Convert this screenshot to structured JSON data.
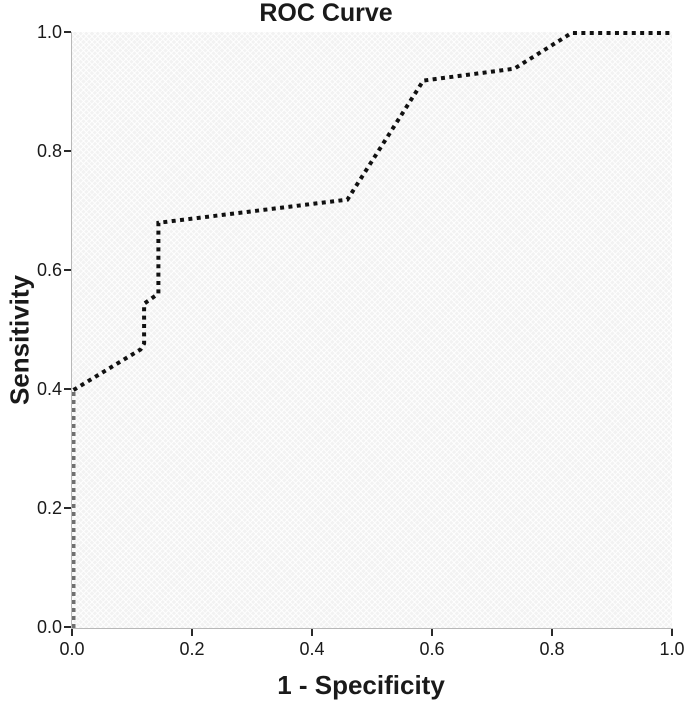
{
  "title": "ROC Curve",
  "axes": {
    "x_label": "1 - Specificity",
    "y_label": "Sensitivity",
    "x_tick_labels": [
      "0.0",
      "0.2",
      "0.4",
      "0.6",
      "0.8",
      "1.0"
    ],
    "y_tick_labels": [
      "0.0",
      "0.2",
      "0.4",
      "0.6",
      "0.8",
      "1.0"
    ]
  },
  "colors": {
    "curve": "#111111",
    "curve_on_axis_segment": "#6f6f6f",
    "axis_line": "#b8b8b8",
    "tick_mark": "#2a2a2a",
    "plot_background": "#f2f2f2",
    "text": "#1a1a1a",
    "page_background": "#ffffff"
  },
  "chart_data": {
    "type": "line",
    "title": "ROC Curve",
    "xlabel": "1 - Specificity",
    "ylabel": "Sensitivity",
    "xlim": [
      0.0,
      1.0
    ],
    "ylim": [
      0.0,
      1.0
    ],
    "x_ticks": [
      0.0,
      0.2,
      0.4,
      0.6,
      0.8,
      1.0
    ],
    "y_ticks": [
      0.0,
      0.2,
      0.4,
      0.6,
      0.8,
      1.0
    ],
    "grid": false,
    "legend": "none",
    "line_style": "dotted",
    "series": [
      {
        "name": "roc-curve-axis-overlap-segment",
        "color": "#6f6f6f",
        "dash": "4 4",
        "points": [
          [
            0.0,
            0.0
          ],
          [
            0.0,
            0.4
          ]
        ]
      },
      {
        "name": "roc-curve",
        "color": "#111111",
        "dash": "4 4.4",
        "points": [
          [
            0.0,
            0.4
          ],
          [
            0.112,
            0.468
          ],
          [
            0.118,
            0.478
          ],
          [
            0.118,
            0.545
          ],
          [
            0.142,
            0.562
          ],
          [
            0.142,
            0.681
          ],
          [
            0.458,
            0.72
          ],
          [
            0.585,
            0.92
          ],
          [
            0.737,
            0.94
          ],
          [
            0.833,
            1.0
          ],
          [
            1.0,
            1.0
          ]
        ]
      }
    ]
  }
}
